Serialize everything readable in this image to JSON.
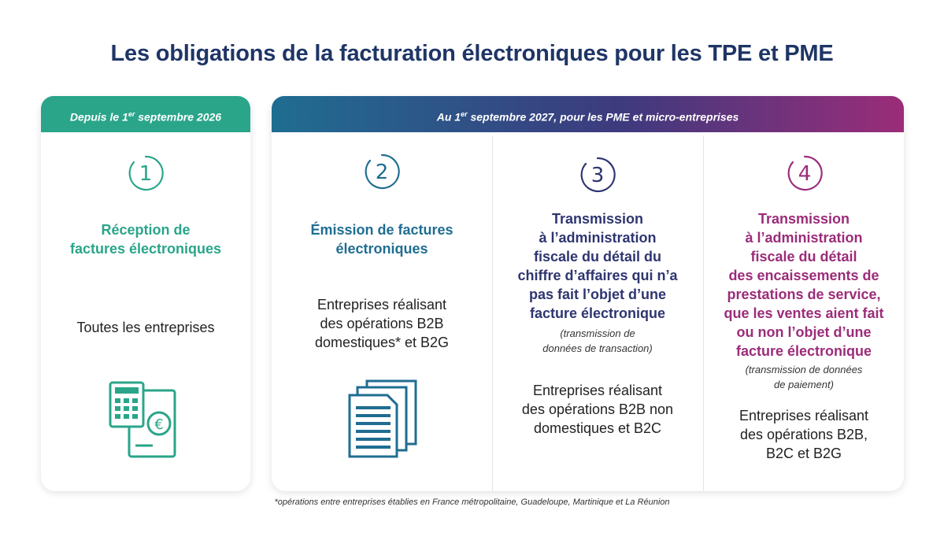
{
  "title": "Les obligations de la facturation électroniques pour les TPE et PME",
  "banner_left": {
    "pre": "Depuis le 1",
    "sup": "er",
    "post": " septembre 2026"
  },
  "banner_right": {
    "pre": "Au 1",
    "sup": "er",
    "post": " septembre 2027, pour les PME et micro-entreprises"
  },
  "columns": [
    {
      "number": "1",
      "heading": [
        "Réception de",
        "factures électroniques"
      ],
      "note": [],
      "body": [
        "Toutes les entreprises"
      ],
      "accent": "#2aa58a"
    },
    {
      "number": "2",
      "heading": [
        "Émission de factures",
        "électroniques"
      ],
      "note": [],
      "body": [
        "Entreprises réalisant",
        "des opérations B2B",
        "domestiques* et B2G"
      ],
      "accent": "#1f6d91"
    },
    {
      "number": "3",
      "heading": [
        "Transmission",
        "à l’administration",
        "fiscale du détail du",
        "chiffre d’affaires qui n’a",
        "pas fait l’objet d’une",
        "facture électronique"
      ],
      "note": [
        "(transmission de",
        "données de transaction)"
      ],
      "body": [
        "Entreprises réalisant",
        "des opérations B2B non",
        "domestiques et B2C"
      ],
      "accent": "#2e3570"
    },
    {
      "number": "4",
      "heading": [
        "Transmission",
        "à l’administration",
        "fiscale du détail",
        "des encaissements de",
        "prestations de service,",
        "que les ventes aient fait",
        "ou non l’objet d’une",
        "facture électronique"
      ],
      "note": [
        "(transmission de données",
        "de paiement)"
      ],
      "body": [
        "Entreprises réalisant",
        "des opérations B2B,",
        "B2C et B2G"
      ],
      "accent": "#9b2c79"
    }
  ],
  "icons": {
    "col1": "calculator-euro-icon",
    "col2": "documents-icon"
  },
  "footnote": "*opérations entre entreprises établies en France métropolitaine, Guadeloupe, Martinique et La Réunion"
}
